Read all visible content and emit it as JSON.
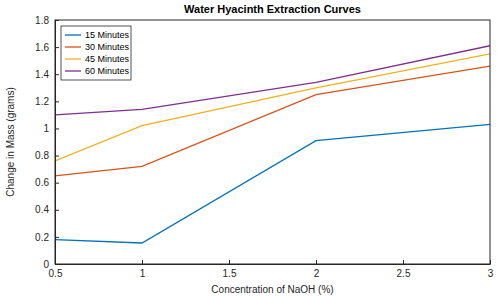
{
  "chart_data": {
    "type": "line",
    "title": "Water Hyacinth Extraction Curves",
    "x_label": "Concentration of NaOH (%)",
    "y_label": "Change in Mass (grams)",
    "x": [
      0.5,
      1,
      2,
      3
    ],
    "series": [
      {
        "name": "15 Minutes",
        "color": "#0072bd",
        "values": [
          0.18,
          0.155,
          0.91,
          1.03
        ]
      },
      {
        "name": "30 Minutes",
        "color": "#d95319",
        "values": [
          0.65,
          0.72,
          1.25,
          1.46
        ]
      },
      {
        "name": "45 Minutes",
        "color": "#edb120",
        "values": [
          0.76,
          1.02,
          1.3,
          1.55
        ]
      },
      {
        "name": "60 Minutes",
        "color": "#7e2f8e",
        "values": [
          1.1,
          1.14,
          1.34,
          1.61
        ]
      }
    ],
    "xlim": [
      0.5,
      3
    ],
    "xticks": [
      0.5,
      1,
      1.5,
      2,
      2.5,
      3
    ],
    "ylim": [
      0,
      1.8
    ],
    "yticks": [
      0,
      0.2,
      0.4,
      0.6,
      0.8,
      1,
      1.2,
      1.4,
      1.6,
      1.8
    ],
    "grid": false,
    "legend": "upper left"
  }
}
